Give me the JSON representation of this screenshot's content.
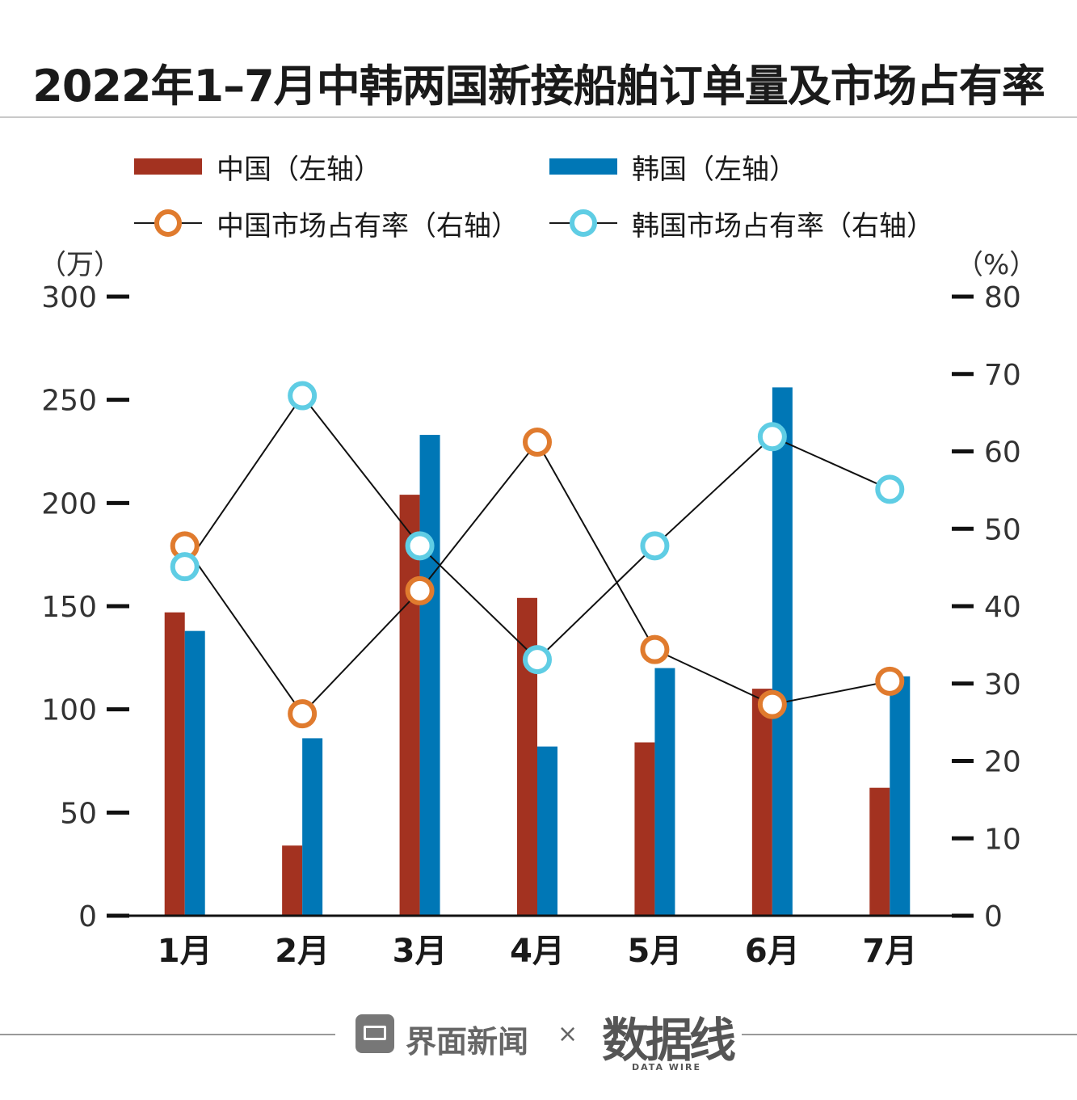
{
  "title": "2022年1–7月中韩两国新接船舶订单量及市场占有率",
  "legend": {
    "china_bar": "中国（左轴）",
    "korea_bar": "韩国（左轴）",
    "china_line": "中国市场占有率（右轴）",
    "korea_line": "韩国市场占有率（右轴）"
  },
  "colors": {
    "china_bar": "#a33220",
    "korea_bar": "#0077b6",
    "china_line": "#e07b2e",
    "korea_line": "#5fcde4"
  },
  "footer": {
    "brand": "界面新闻",
    "times": "×",
    "partner": "数据线",
    "partner_sub": "DATA WIRE"
  },
  "chart_data": {
    "type": "bar",
    "title": "2022年1–7月中韩两国新接船舶订单量及市场占有率",
    "categories": [
      "1月",
      "2月",
      "3月",
      "4月",
      "5月",
      "6月",
      "7月"
    ],
    "y_left": {
      "label": "（万）",
      "ticks": [
        0,
        50,
        100,
        150,
        200,
        250,
        300
      ],
      "range": [
        0,
        300
      ]
    },
    "y_right": {
      "label": "（%）",
      "ticks": [
        0,
        10,
        20,
        30,
        40,
        50,
        60,
        70,
        80
      ],
      "range": [
        0,
        80
      ]
    },
    "series": [
      {
        "name": "中国（左轴）",
        "type": "bar",
        "axis": "left",
        "values": [
          147,
          34,
          204,
          154,
          84,
          110,
          62
        ]
      },
      {
        "name": "韩国（左轴）",
        "type": "bar",
        "axis": "left",
        "values": [
          138,
          86,
          233,
          82,
          120,
          256,
          116
        ]
      },
      {
        "name": "中国市场占有率（右轴）",
        "type": "line",
        "axis": "right",
        "values": [
          47.8,
          26.1,
          42.0,
          61.2,
          34.4,
          27.3,
          30.3
        ]
      },
      {
        "name": "韩国市场占有率（右轴）",
        "type": "line",
        "axis": "right",
        "values": [
          45.1,
          67.2,
          47.8,
          33.1,
          47.8,
          61.9,
          55.1
        ]
      }
    ]
  }
}
